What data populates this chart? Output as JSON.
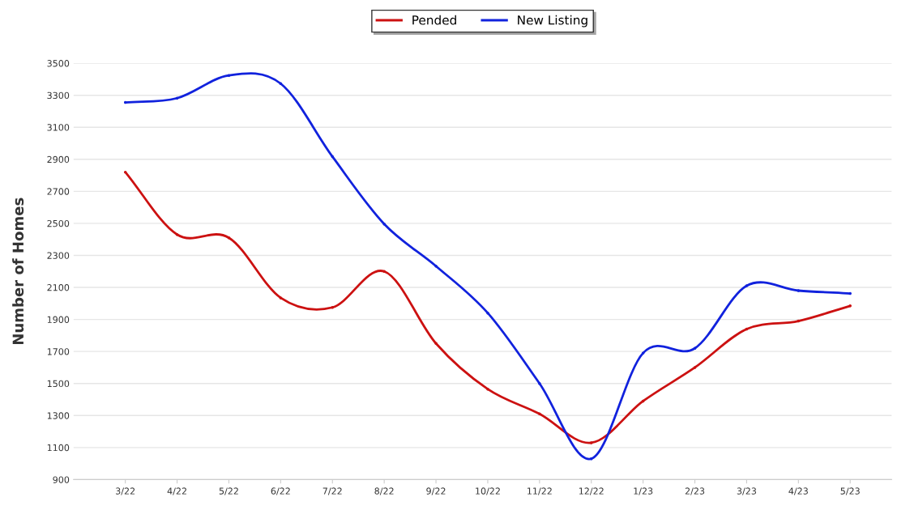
{
  "chart_data": {
    "type": "line",
    "ylabel": "Number of Homes",
    "categories": [
      "3/22",
      "4/22",
      "5/22",
      "6/22",
      "7/22",
      "8/22",
      "9/22",
      "10/22",
      "11/22",
      "12/22",
      "1/23",
      "2/23",
      "3/23",
      "4/23",
      "5/23"
    ],
    "series": [
      {
        "name": "Pended",
        "color": "#cc1111",
        "values": [
          2820,
          2430,
          2410,
          2035,
          1975,
          2200,
          1750,
          1465,
          1310,
          1130,
          1390,
          1600,
          1840,
          1890,
          1985
        ]
      },
      {
        "name": "New Listing",
        "color": "#1122dd",
        "values": [
          3255,
          3282,
          3424,
          3373,
          2917,
          2496,
          2233,
          1940,
          1500,
          1030,
          1690,
          1720,
          2110,
          2080,
          2062
        ]
      }
    ],
    "ylim": [
      900,
      3500
    ],
    "yticks": [
      900,
      1100,
      1300,
      1500,
      1700,
      1900,
      2100,
      2300,
      2500,
      2700,
      2900,
      3100,
      3300,
      3500
    ],
    "grid": "y",
    "legend": "top",
    "marker": "none",
    "line_style": "solid"
  }
}
